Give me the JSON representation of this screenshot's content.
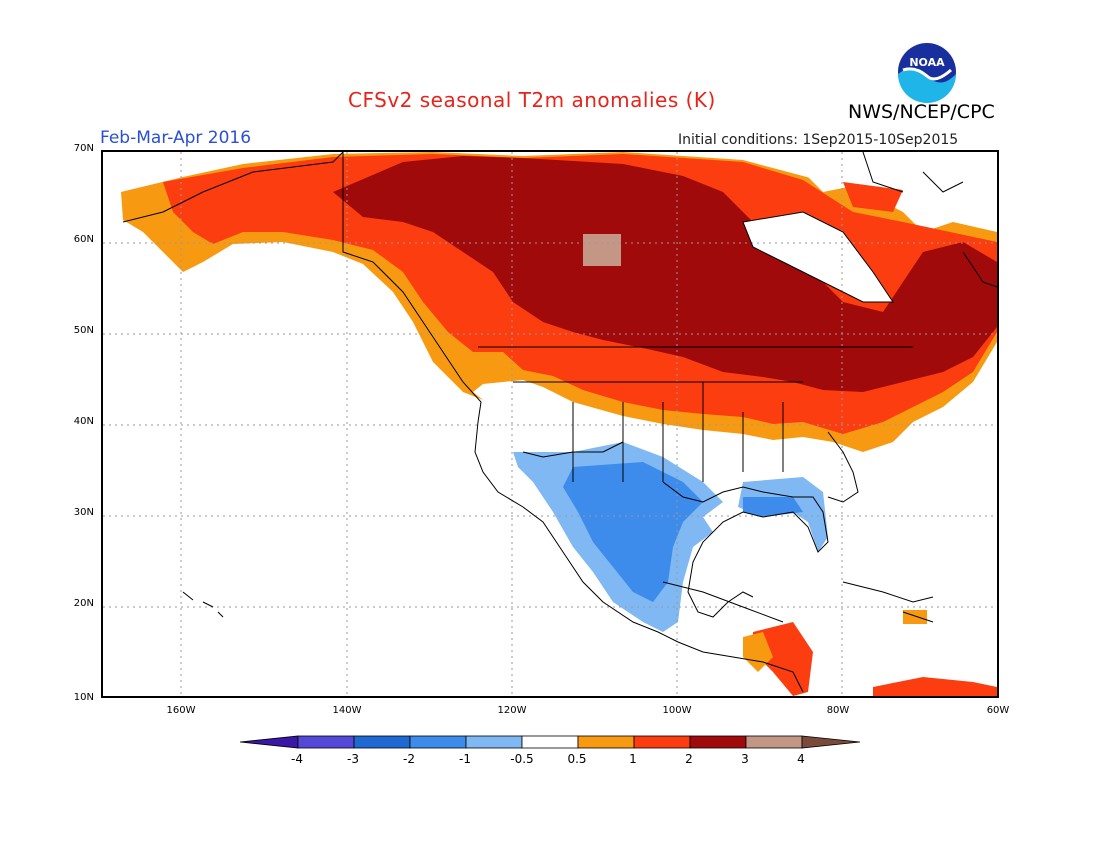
{
  "title": "CFSv2 seasonal T2m anomalies (K)",
  "period": "Feb-Mar-Apr 2016",
  "initial_conditions": "Initial conditions: 1Sep2015-10Sep2015",
  "agency": "NWS/NCEP/CPC",
  "logo_text": "NOAA",
  "lat_labels": [
    "70N",
    "60N",
    "50N",
    "40N",
    "30N",
    "20N",
    "10N"
  ],
  "lon_labels": [
    "160W",
    "140W",
    "120W",
    "100W",
    "80W",
    "60W"
  ],
  "legend": {
    "ticks": [
      "-4",
      "-3",
      "-2",
      "-1",
      "-0.5",
      "0.5",
      "1",
      "2",
      "3",
      "4"
    ],
    "colors": [
      "#3b17a8",
      "#5448d6",
      "#1f6ad2",
      "#3d8bea",
      "#7fb8f2",
      "#ffffff",
      "#f79a12",
      "#fb3d10",
      "#a10a0a",
      "#c49686",
      "#7a4a3a"
    ]
  }
}
